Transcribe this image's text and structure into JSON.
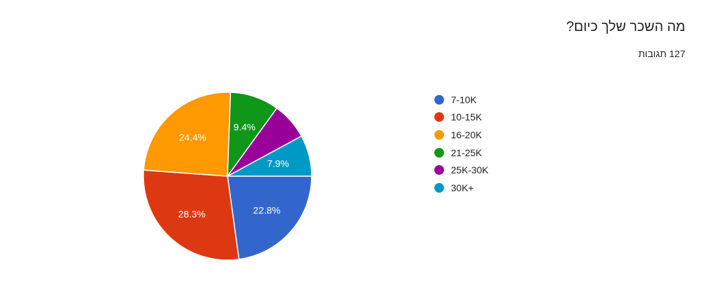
{
  "chart_data": {
    "type": "pie",
    "title": "מה השכר שלך כיום?",
    "subtitle": "127 תגובות",
    "legend_position": "right",
    "categories": [
      "7-10K",
      "10-15K",
      "16-20K",
      "21-25K",
      "25K-30K",
      "30K+"
    ],
    "values": [
      22.8,
      28.3,
      24.4,
      9.4,
      7.1,
      7.9
    ],
    "labels": [
      "22.8%",
      "28.3%",
      "24.4%",
      "9.4%",
      "",
      "7.9%"
    ],
    "colors": [
      "#3366cc",
      "#dc3912",
      "#ff9900",
      "#109618",
      "#990099",
      "#0099c6"
    ]
  }
}
